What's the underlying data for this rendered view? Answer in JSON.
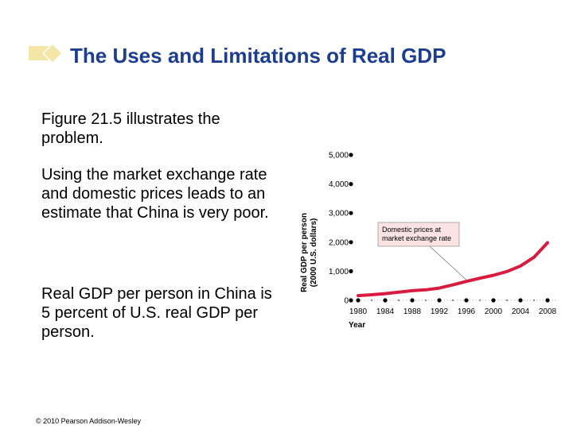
{
  "slide": {
    "title": "The Uses and Limitations of Real GDP",
    "paragraphs": [
      "Figure 21.5 illustrates the problem.",
      "Using the market exchange rate and domestic prices leads to an estimate that China is very poor.",
      "Real GDP per person in China is 5 percent of U.S. real GDP per person."
    ],
    "copyright": "© 2010 Pearson Addison-Wesley"
  },
  "colors": {
    "title": "#1d3d8f",
    "deco_yellow": "#f3e6a6",
    "series_line": "#d81b3f",
    "callout_fill": "#fbe3e3"
  },
  "chart_data": {
    "type": "line",
    "title": "",
    "xlabel": "Year",
    "ylabel": "Real GDP per person",
    "ylabel_sub": "(2000 U.S. dollars)",
    "xlim": [
      1980,
      2008
    ],
    "ylim": [
      0,
      5000
    ],
    "x_ticks": [
      1980,
      1984,
      1988,
      1992,
      1996,
      2000,
      2004,
      2008
    ],
    "y_ticks": [
      0,
      1000,
      2000,
      3000,
      4000,
      5000
    ],
    "y_tick_labels": [
      "0",
      "1,000",
      "2,000",
      "3,000",
      "4,000",
      "5,000"
    ],
    "grid": false,
    "series": [
      {
        "name": "Domestic prices at market exchange rate",
        "x": [
          1980,
          1982,
          1984,
          1986,
          1988,
          1990,
          1992,
          1994,
          1996,
          1998,
          2000,
          2002,
          2004,
          2006,
          2008
        ],
        "values": [
          160,
          190,
          230,
          280,
          330,
          360,
          420,
          530,
          650,
          760,
          860,
          990,
          1180,
          1480,
          1980
        ]
      }
    ],
    "annotations": [
      {
        "text_lines": [
          "Domestic prices at",
          "market exchange rate"
        ],
        "points_to": {
          "x": 1996,
          "y": 700
        }
      }
    ]
  }
}
